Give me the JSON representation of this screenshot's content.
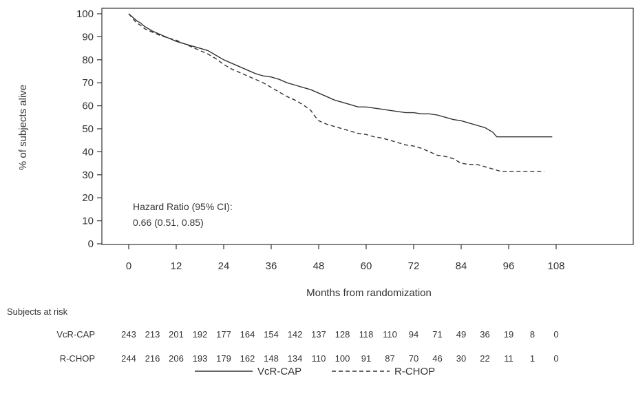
{
  "chart_data": {
    "type": "line",
    "title": "",
    "xlabel": "Months from randomization",
    "ylabel": "% of subjects alive",
    "xlim": [
      -5,
      110
    ],
    "ylim": [
      0,
      100
    ],
    "xticks": [
      0,
      12,
      24,
      36,
      48,
      60,
      72,
      84,
      96,
      108
    ],
    "yticks": [
      0,
      10,
      20,
      30,
      40,
      50,
      60,
      70,
      80,
      90,
      100
    ],
    "grid": false,
    "legend_position": "bottom",
    "annotation": {
      "line1": "Hazard Ratio (95% CI):",
      "line2": "0.66 (0.51, 0.85)"
    },
    "series": [
      {
        "name": "VcR-CAP",
        "style": "solid",
        "color": "#333333",
        "x": [
          0,
          1,
          2,
          3,
          4,
          6,
          8,
          10,
          12,
          14,
          16,
          18,
          20,
          22,
          24,
          26,
          28,
          30,
          32,
          34,
          36,
          38,
          40,
          42,
          44,
          46,
          48,
          50,
          52,
          54,
          56,
          58,
          60,
          62,
          64,
          66,
          68,
          70,
          72,
          74,
          76,
          78,
          80,
          82,
          84,
          86,
          88,
          90,
          92,
          93,
          95,
          100,
          107
        ],
        "y": [
          100,
          98.5,
          97,
          96,
          94.5,
          92.5,
          91,
          89.5,
          88,
          87,
          86,
          85,
          84,
          82,
          80,
          78.5,
          77,
          75.5,
          74,
          73,
          72.5,
          71.5,
          70,
          69,
          68,
          67,
          65.5,
          64,
          62.5,
          61.5,
          60.5,
          59.5,
          59.5,
          59,
          58.5,
          58,
          57.5,
          57,
          57,
          56.5,
          56.5,
          56,
          55,
          54,
          53.5,
          52.5,
          51.5,
          50.5,
          48.5,
          46.5,
          46.5,
          46.5,
          46.5
        ]
      },
      {
        "name": "R-CHOP",
        "style": "dashed",
        "color": "#333333",
        "x": [
          0,
          1,
          2,
          3,
          4,
          6,
          8,
          10,
          12,
          14,
          16,
          18,
          20,
          22,
          24,
          26,
          28,
          30,
          32,
          34,
          36,
          38,
          40,
          42,
          44,
          46,
          47,
          48,
          50,
          52,
          54,
          56,
          58,
          60,
          62,
          64,
          66,
          68,
          70,
          72,
          74,
          76,
          78,
          80,
          82,
          84,
          86,
          88,
          90,
          92,
          94,
          100,
          105
        ],
        "y": [
          100,
          98,
          96,
          95,
          93.5,
          92,
          90.5,
          89.5,
          88.5,
          87,
          85.5,
          84,
          82.5,
          80.5,
          78,
          76,
          74.5,
          73,
          71.5,
          70,
          68,
          66,
          64,
          62.5,
          60.5,
          58,
          55.5,
          53.5,
          52,
          51,
          50,
          49,
          48,
          47.5,
          46.5,
          46,
          45,
          44,
          43,
          42.5,
          41.5,
          40,
          38.5,
          38,
          37,
          35,
          34.5,
          34.5,
          33.5,
          32.5,
          31.5,
          31.5,
          31.5
        ]
      }
    ],
    "at_risk": {
      "header": "Subjects at risk",
      "times": [
        0,
        6,
        12,
        18,
        24,
        30,
        36,
        42,
        48,
        54,
        60,
        66,
        72,
        78,
        84,
        90,
        96,
        102,
        108
      ],
      "rows": [
        {
          "label": "VcR-CAP",
          "values": [
            "243",
            "213",
            "201",
            "192",
            "177",
            "164",
            "154",
            "142",
            "137",
            "128",
            "118",
            "110",
            "94",
            "71",
            "49",
            "36",
            "19",
            "8",
            "0"
          ]
        },
        {
          "label": "R-CHOP",
          "values": [
            "244",
            "216",
            "206",
            "193",
            "179",
            "162",
            "148",
            "134",
            "110",
            "100",
            "91",
            "87",
            "70",
            "46",
            "30",
            "22",
            "11",
            "1",
            "0"
          ]
        }
      ]
    }
  }
}
